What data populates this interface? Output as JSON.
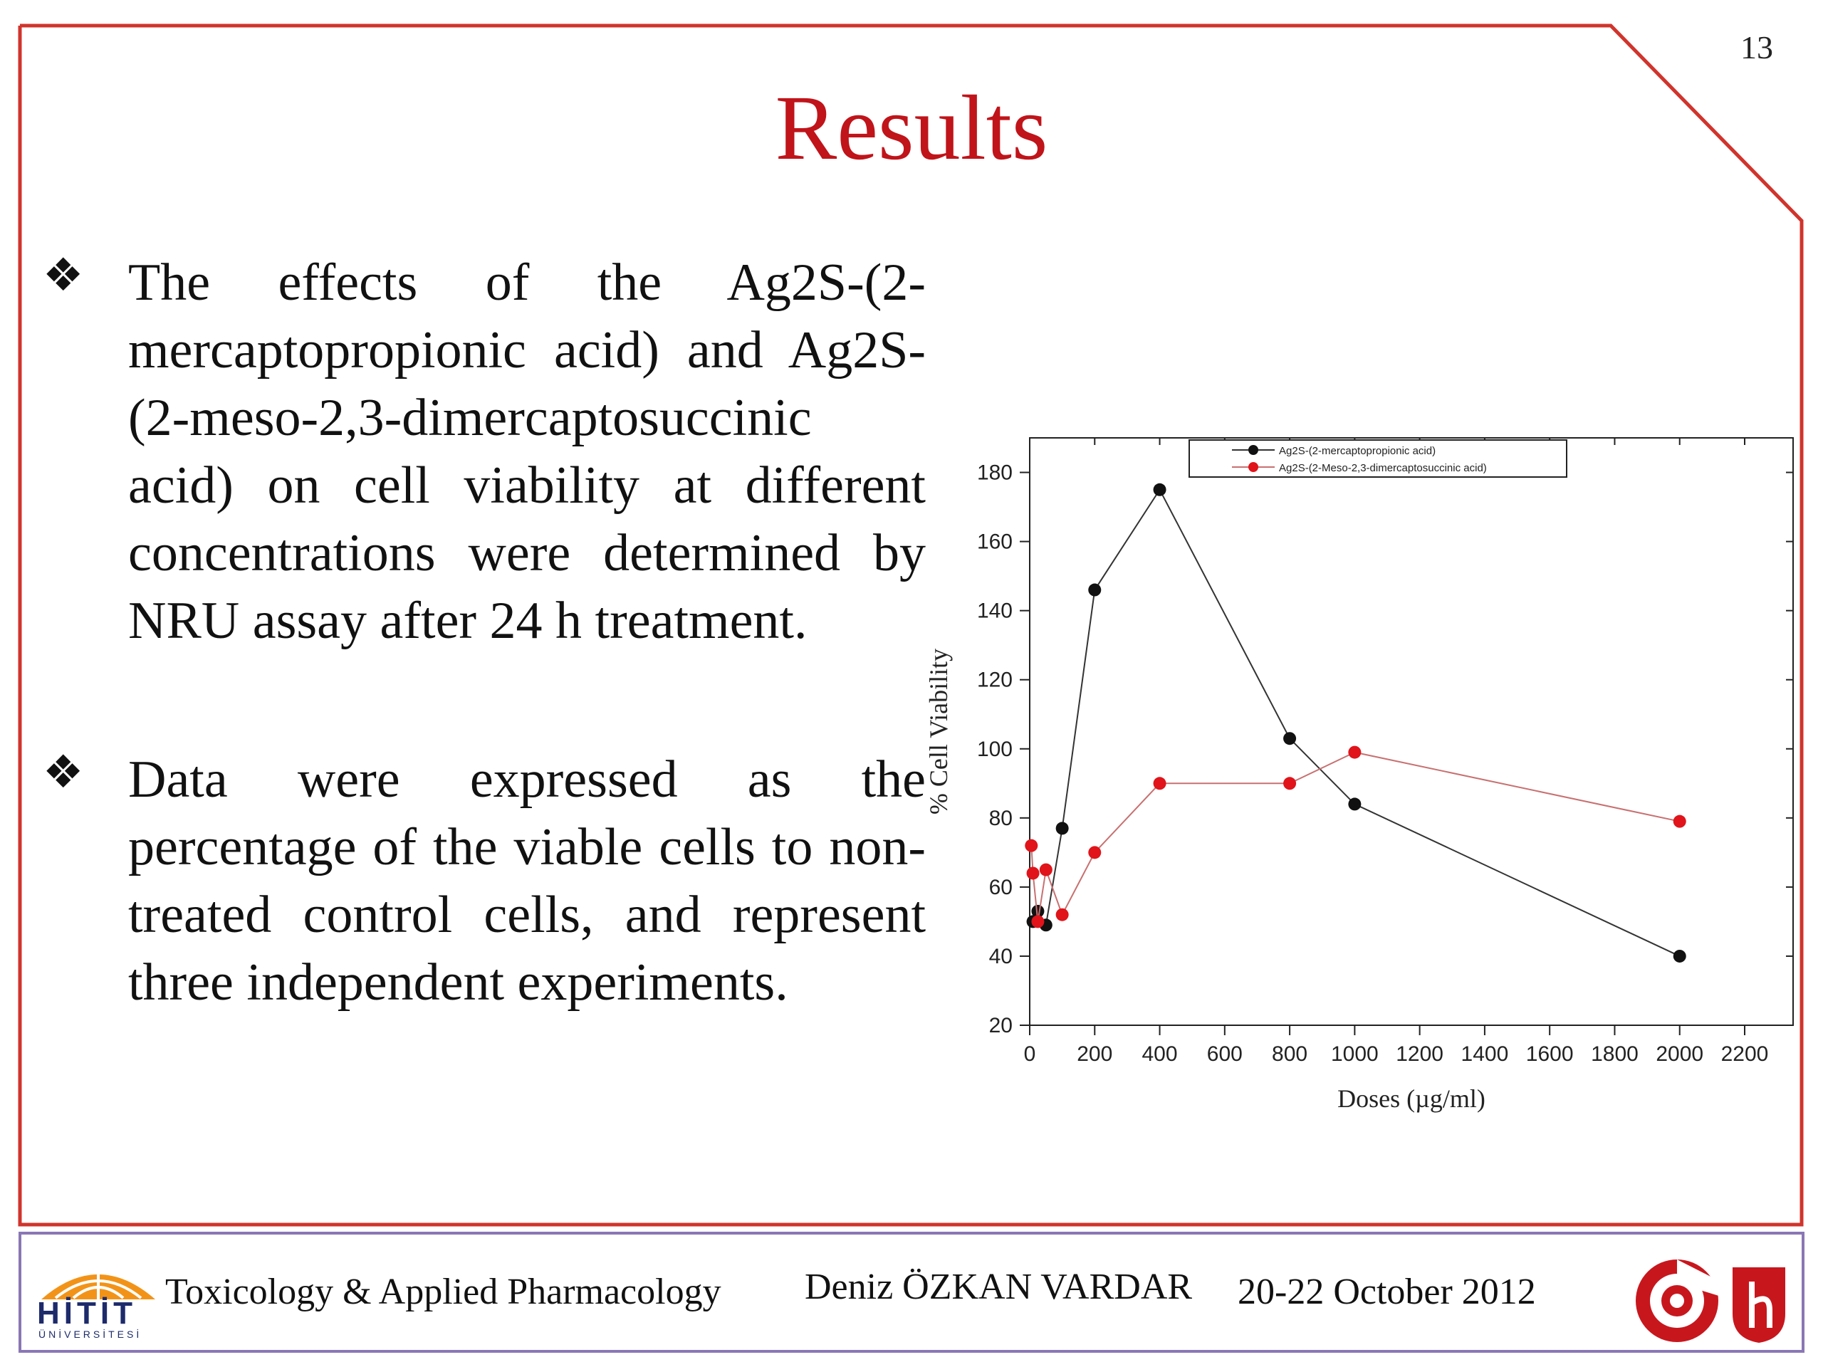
{
  "page_number": "13",
  "title": "Results",
  "bullets": [
    {
      "icon": "four-diamond-bullet-icon",
      "text": "The effects of the Ag2S-(2-mercaptopropionic acid) and Ag2S-(2-meso-2,3-dimercaptosuccinic acid) on cell viability at different concentrations were determined by NRU assay after 24 h treatment."
    },
    {
      "icon": "four-diamond-bullet-icon",
      "text": "Data were expressed as the percentage of the viable cells to non-treated control cells, and represent three independent experiments."
    }
  ],
  "footer": {
    "logo_word": "HİTİT",
    "logo_sub": "ÜNİVERSİTESİ",
    "department": "Toxicology & Applied Pharmacology",
    "author": "Deniz ÖZKAN VARDAR",
    "date": "20-22 October 2012"
  },
  "colors": {
    "title": "#c0141a",
    "frame": "#d0342c",
    "footer_frame": "#8a77b5",
    "series_black": "#111111",
    "series_red": "#e0141a"
  },
  "chart_data": {
    "type": "scatter",
    "mode": "lines+markers",
    "xlabel": "Doses (µg/ml)",
    "ylabel": "% Cell Viability",
    "xlim": [
      0,
      2200
    ],
    "ylim": [
      20,
      190
    ],
    "xticks": [
      0,
      200,
      400,
      600,
      800,
      1000,
      1200,
      1400,
      1600,
      1800,
      2000,
      2200
    ],
    "yticks": [
      20,
      40,
      60,
      80,
      100,
      120,
      140,
      160,
      180
    ],
    "legend_position": "top-center",
    "grid": false,
    "series": [
      {
        "name": "Ag2S-(2-mercaptopropionic acid)",
        "color": "#111111",
        "x": [
          10,
          25,
          50,
          100,
          200,
          400,
          800,
          1000,
          2000
        ],
        "y": [
          50,
          53,
          49,
          77,
          146,
          175,
          103,
          84,
          40
        ]
      },
      {
        "name": "Ag2S-(2-Meso-2,3-dimercaptosuccinic acid)",
        "color": "#e0141a",
        "x": [
          5,
          10,
          25,
          50,
          100,
          200,
          400,
          800,
          1000,
          2000
        ],
        "y": [
          72,
          64,
          50,
          65,
          52,
          70,
          90,
          90,
          99,
          79
        ]
      }
    ]
  }
}
